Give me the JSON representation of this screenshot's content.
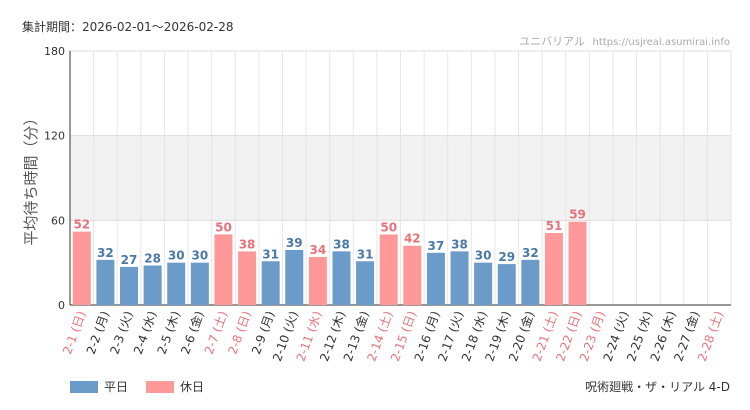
{
  "header": {
    "period_label": "集計期間：2026-02-01〜2026-02-28",
    "source_name": "ユニバリアル",
    "source_url": "https://usjreal.asumirai.info"
  },
  "footer": {
    "attraction": "呪術廻戦・ザ・リアル 4-D"
  },
  "colors": {
    "weekday": "#6b9bc8",
    "holiday": "#ff9999",
    "weekday_label": "#4a79a8",
    "holiday_label": "#e8727a",
    "axis_text": "#333333",
    "band": "#f2f2f2"
  },
  "chart_data": {
    "type": "bar",
    "ylabel": "平均待ち時間（分）",
    "ylim": [
      0,
      180
    ],
    "yticks": [
      0,
      60,
      120,
      180
    ],
    "shaded_band": [
      60,
      120
    ],
    "grid": true,
    "legend_position": "bottom-left",
    "series": [
      {
        "name": "平日",
        "key": "weekday"
      },
      {
        "name": "休日",
        "key": "holiday"
      }
    ],
    "categories": [
      "2-1 (日)",
      "2-2 (月)",
      "2-3 (火)",
      "2-4 (水)",
      "2-5 (木)",
      "2-6 (金)",
      "2-7 (土)",
      "2-8 (日)",
      "2-9 (月)",
      "2-10 (火)",
      "2-11 (水)",
      "2-12 (木)",
      "2-13 (金)",
      "2-14 (土)",
      "2-15 (日)",
      "2-16 (月)",
      "2-17 (火)",
      "2-18 (水)",
      "2-19 (木)",
      "2-20 (金)",
      "2-21 (土)",
      "2-22 (日)",
      "2-23 (月)",
      "2-24 (火)",
      "2-25 (水)",
      "2-26 (木)",
      "2-27 (金)",
      "2-28 (土)"
    ],
    "day_type": [
      "holiday",
      "weekday",
      "weekday",
      "weekday",
      "weekday",
      "weekday",
      "holiday",
      "holiday",
      "weekday",
      "weekday",
      "holiday",
      "weekday",
      "weekday",
      "holiday",
      "holiday",
      "weekday",
      "weekday",
      "weekday",
      "weekday",
      "weekday",
      "holiday",
      "holiday",
      "holiday",
      "weekday",
      "weekday",
      "weekday",
      "weekday",
      "holiday"
    ],
    "values": [
      52,
      32,
      27,
      28,
      30,
      30,
      50,
      38,
      31,
      39,
      34,
      38,
      31,
      50,
      42,
      37,
      38,
      30,
      29,
      32,
      51,
      59,
      null,
      null,
      null,
      null,
      null,
      null
    ]
  }
}
